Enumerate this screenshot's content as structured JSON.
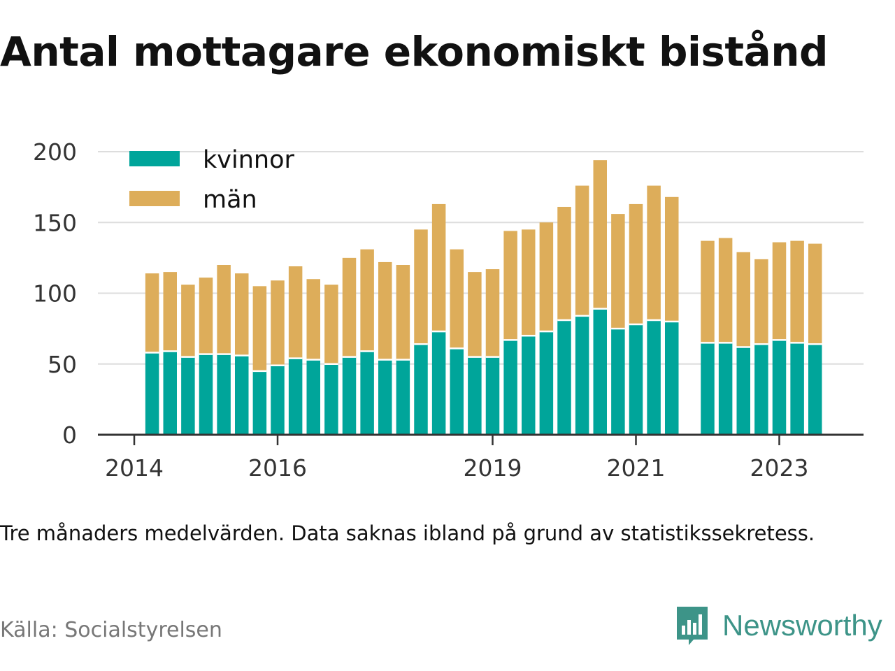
{
  "title": "Antal mottagare ekonomiskt bistånd",
  "subtitle": "Tre månaders medelvärden. Data saknas ibland på grund av statistikssekretess.",
  "source": "Källa: Socialstyrelsen",
  "brand": {
    "name": "Newsworthy",
    "icon": "newsworthy-logo-icon",
    "color": "#3d9488"
  },
  "colors": {
    "kvinnor": "#00a59a",
    "man": "#ddad5a",
    "grid": "#dddddd",
    "axis": "#333333"
  },
  "chart_data": {
    "type": "bar",
    "stacked": true,
    "title": "Antal mottagare ekonomiskt bistånd",
    "xlabel": "",
    "ylabel": "",
    "ylim": [
      0,
      200
    ],
    "yticks": [
      0,
      50,
      100,
      150,
      200
    ],
    "xticks": [
      "2014",
      "2016",
      "2019",
      "2021",
      "2023"
    ],
    "grid": true,
    "legend": "top-left",
    "x": [
      "2014-04",
      "2014-07",
      "2014-10",
      "2015-01",
      "2015-04",
      "2015-07",
      "2015-10",
      "2016-01",
      "2016-04",
      "2016-07",
      "2016-10",
      "2017-01",
      "2017-04",
      "2017-07",
      "2017-10",
      "2018-01",
      "2018-04",
      "2018-07",
      "2018-10",
      "2019-01",
      "2019-04",
      "2019-07",
      "2019-10",
      "2020-01",
      "2020-04",
      "2020-07",
      "2020-10",
      "2021-01",
      "2021-04",
      "2021-07",
      "2021-10",
      "2022-01",
      "2022-04",
      "2022-07",
      "2022-10",
      "2023-01",
      "2023-04",
      "2023-07",
      "2023-10",
      "2024-01"
    ],
    "series": [
      {
        "name": "kvinnor",
        "values": [
          58,
          59,
          55,
          57,
          57,
          56,
          45,
          49,
          54,
          53,
          50,
          55,
          59,
          53,
          53,
          64,
          73,
          61,
          55,
          55,
          67,
          70,
          73,
          81,
          84,
          89,
          75,
          78,
          81,
          80,
          null,
          65,
          65,
          62,
          64,
          67,
          65,
          64,
          null,
          null
        ]
      },
      {
        "name": "män",
        "values": [
          56,
          56,
          51,
          54,
          63,
          58,
          60,
          60,
          65,
          57,
          56,
          70,
          72,
          69,
          67,
          81,
          90,
          70,
          60,
          62,
          77,
          75,
          77,
          80,
          92,
          105,
          81,
          85,
          95,
          88,
          null,
          72,
          74,
          67,
          60,
          69,
          72,
          71,
          null,
          null
        ]
      }
    ]
  }
}
